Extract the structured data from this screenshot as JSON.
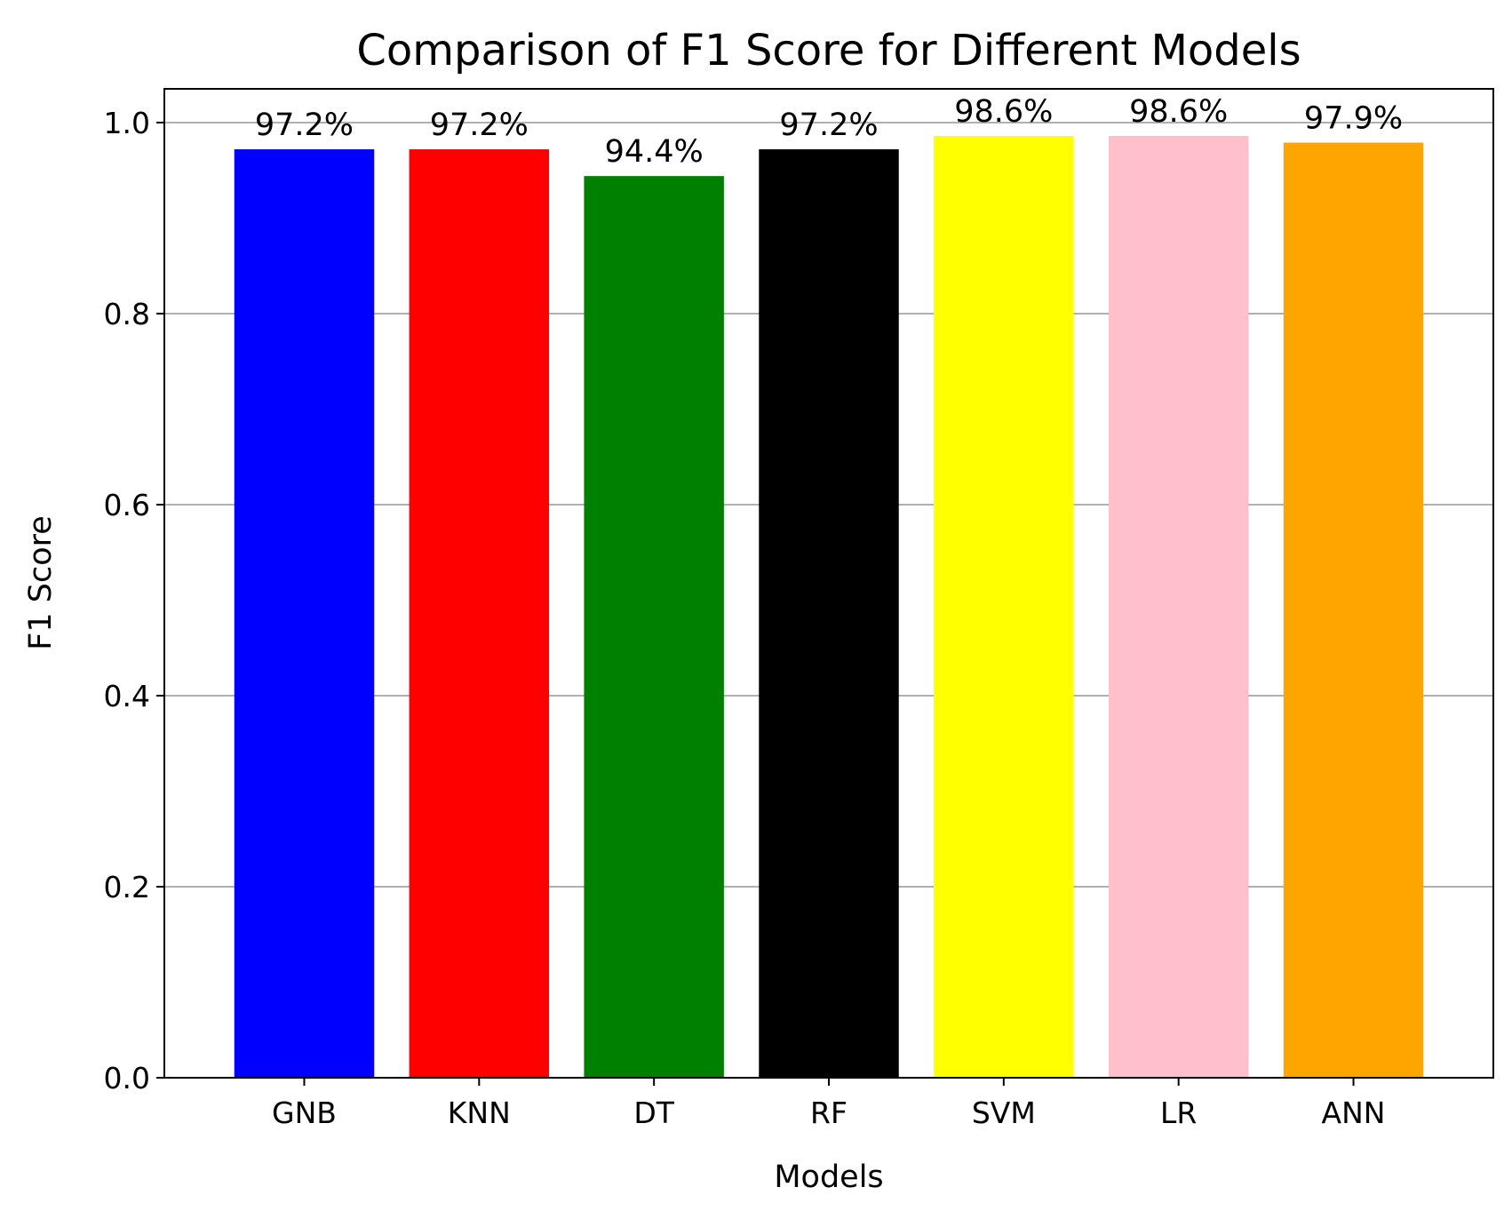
{
  "chart_data": {
    "type": "bar",
    "title": "Comparison of F1 Score for Different Models",
    "xlabel": "Models",
    "ylabel": "F1 Score",
    "categories": [
      "GNB",
      "KNN",
      "DT",
      "RF",
      "SVM",
      "LR",
      "ANN"
    ],
    "values": [
      0.972,
      0.972,
      0.944,
      0.972,
      0.986,
      0.986,
      0.979
    ],
    "data_labels": [
      "97.2%",
      "97.2%",
      "94.4%",
      "97.2%",
      "98.6%",
      "98.6%",
      "97.9%"
    ],
    "colors": [
      "#0000ff",
      "#ff0000",
      "#008000",
      "#000000",
      "#ffff00",
      "#ffc0cb",
      "#ffa500"
    ],
    "ylim": [
      0,
      1.0353
    ],
    "yticks": [
      0.0,
      0.2,
      0.4,
      0.6,
      0.8,
      1.0
    ],
    "ytick_labels": [
      "0.0",
      "0.2",
      "0.4",
      "0.6",
      "0.8",
      "1.0"
    ],
    "grid": "y-axis",
    "legend": "none"
  }
}
